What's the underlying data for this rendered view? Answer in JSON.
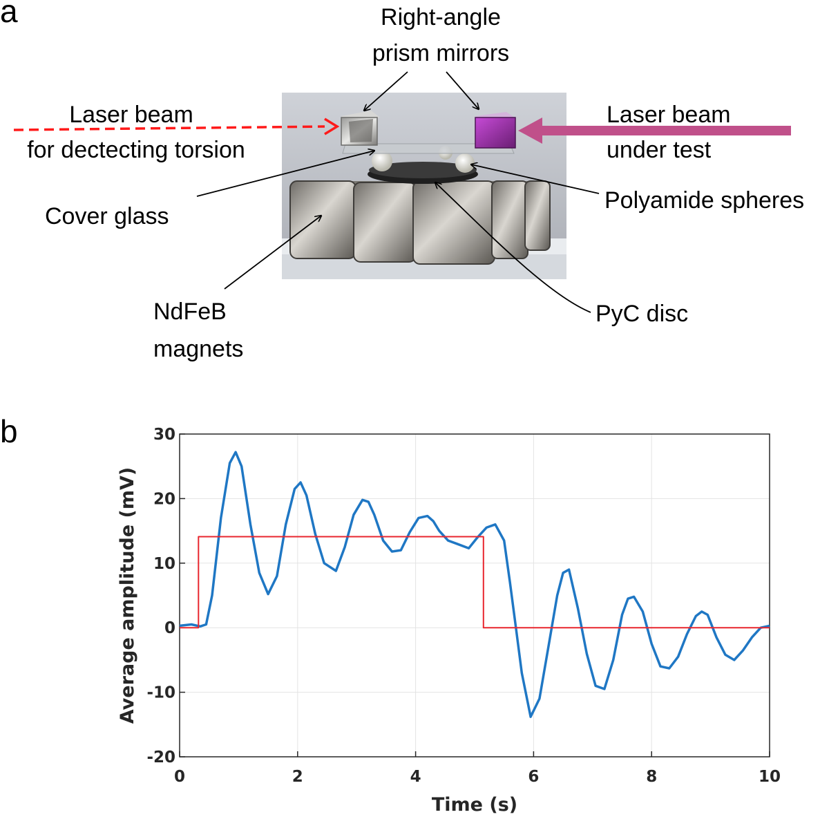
{
  "panel_a": {
    "letter": "a",
    "labels": {
      "prism_line1": "Right-angle",
      "prism_line2": "prism mirrors",
      "laser_detect_line1": "Laser beam",
      "laser_detect_line2": "for dectecting torsion",
      "laser_test_line1": "Laser beam",
      "laser_test_line2": "under test",
      "cover_glass": "Cover glass",
      "polyamide": "Polyamide spheres",
      "magnets_line1": "NdFeB",
      "magnets_line2": "magnets",
      "pyc": "PyC disc"
    },
    "colors": {
      "detect_beam": "#ff1a1a",
      "test_beam": "#c0508a"
    }
  },
  "panel_b": {
    "letter": "b"
  },
  "chart_data": {
    "type": "line",
    "xlabel": "Time (s)",
    "ylabel": "Average amplitude (mV)",
    "xlim": [
      0,
      10
    ],
    "ylim": [
      -20,
      30
    ],
    "xticks": [
      0,
      2,
      4,
      6,
      8,
      10
    ],
    "yticks": [
      -20,
      -10,
      0,
      10,
      20,
      30
    ],
    "grid": true,
    "series": [
      {
        "color": "#1f77c4",
        "x": [
          0,
          0.2,
          0.35,
          0.45,
          0.55,
          0.7,
          0.85,
          0.95,
          1.05,
          1.2,
          1.35,
          1.5,
          1.65,
          1.8,
          1.95,
          2.05,
          2.15,
          2.3,
          2.45,
          2.65,
          2.8,
          2.95,
          3.1,
          3.2,
          3.3,
          3.45,
          3.6,
          3.75,
          3.9,
          4.05,
          4.2,
          4.3,
          4.4,
          4.55,
          4.7,
          4.9,
          5.05,
          5.2,
          5.35,
          5.5,
          5.6,
          5.7,
          5.8,
          5.95,
          6.1,
          6.25,
          6.4,
          6.5,
          6.6,
          6.75,
          6.9,
          7.05,
          7.2,
          7.35,
          7.5,
          7.6,
          7.7,
          7.85,
          8.0,
          8.15,
          8.3,
          8.45,
          8.6,
          8.75,
          8.85,
          8.95,
          9.1,
          9.25,
          9.4,
          9.55,
          9.7,
          9.85,
          10.0
        ],
        "y": [
          0.3,
          0.5,
          0.2,
          0.5,
          5,
          17,
          25.5,
          27.2,
          25,
          16,
          8.5,
          5.2,
          8,
          16,
          21.5,
          22.5,
          20.5,
          14.5,
          10,
          8.8,
          12.5,
          17.5,
          19.8,
          19.5,
          17.5,
          13.5,
          11.8,
          12,
          14.8,
          17,
          17.3,
          16.5,
          15,
          13.5,
          13,
          12.3,
          14,
          15.5,
          16,
          13.5,
          7,
          0,
          -7,
          -13.8,
          -11,
          -3,
          5,
          8.5,
          9,
          3,
          -4,
          -9,
          -9.5,
          -5,
          2,
          4.5,
          4.8,
          2.5,
          -2.5,
          -6,
          -6.3,
          -4.5,
          -1,
          1.8,
          2.5,
          2,
          -1.5,
          -4.2,
          -5,
          -3.5,
          -1.5,
          0,
          0.3
        ]
      },
      {
        "color": "#e8262e",
        "x": [
          0,
          0.32,
          0.32,
          5.15,
          5.15,
          10
        ],
        "y": [
          0,
          0,
          14.1,
          14.1,
          0,
          0
        ]
      }
    ]
  }
}
